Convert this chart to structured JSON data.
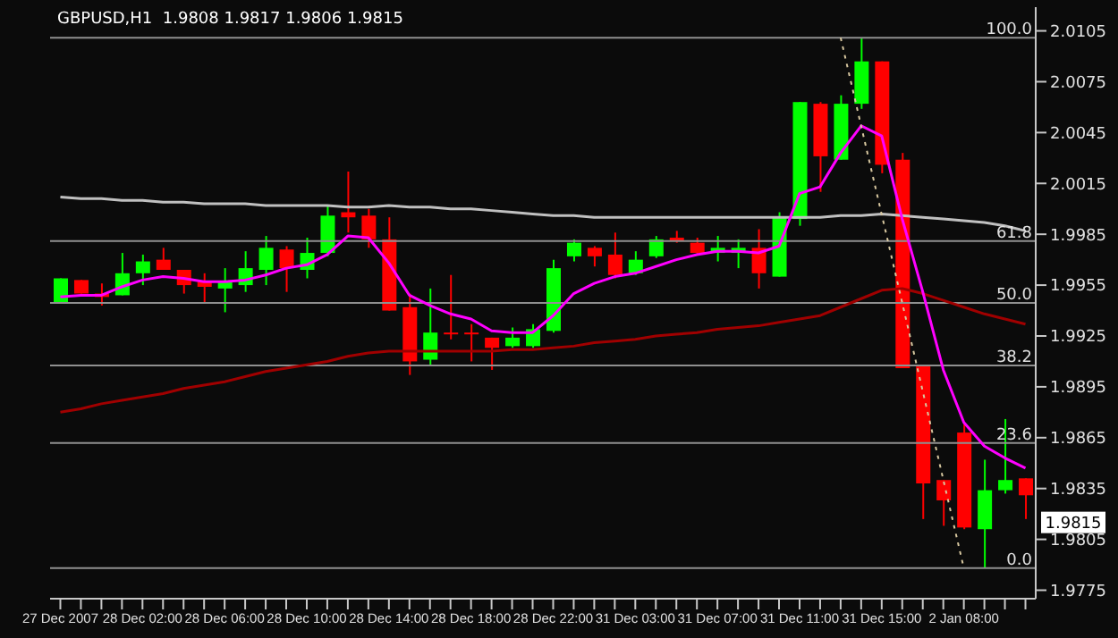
{
  "chart_data": {
    "type": "candlestick",
    "title": "GBPUSD,H1  1.9808 1.9817 1.9806 1.9815",
    "categories": [
      "27 Dec 2007",
      null,
      null,
      null,
      "28 Dec 02:00",
      null,
      null,
      null,
      "28 Dec 06:00",
      null,
      null,
      null,
      "28 Dec 10:00",
      null,
      null,
      null,
      "28 Dec 14:00",
      null,
      null,
      null,
      "28 Dec 18:00",
      null,
      null,
      null,
      "28 Dec 22:00",
      null,
      null,
      null,
      "31 Dec 03:00",
      null,
      null,
      null,
      "31 Dec 07:00",
      null,
      null,
      null,
      "31 Dec 11:00",
      null,
      null,
      null,
      "31 Dec 15:00",
      null,
      null,
      null,
      "2 Jan 08:00",
      null,
      null,
      null
    ],
    "ohlc": [
      [
        1.9944,
        1.9959,
        1.9944,
        1.9959
      ],
      [
        1.9958,
        1.9958,
        1.995,
        1.995
      ],
      [
        1.995,
        1.9956,
        1.9943,
        1.9948
      ],
      [
        1.9949,
        1.9974,
        1.9949,
        1.9962
      ],
      [
        1.9962,
        1.9973,
        1.9955,
        1.9969
      ],
      [
        1.997,
        1.9977,
        1.9964,
        1.9964
      ],
      [
        1.9964,
        1.9964,
        1.995,
        1.9955
      ],
      [
        1.9957,
        1.9962,
        1.9944,
        1.9954
      ],
      [
        1.9953,
        1.9965,
        1.9939,
        1.9957
      ],
      [
        1.9955,
        1.9975,
        1.9951,
        1.9965
      ],
      [
        1.9964,
        1.9984,
        1.9955,
        1.9977
      ],
      [
        1.9976,
        1.9978,
        1.9951,
        1.9965
      ],
      [
        1.9964,
        1.9983,
        1.9959,
        1.9974
      ],
      [
        1.9974,
        2.0002,
        1.9972,
        1.9996
      ],
      [
        1.9998,
        2.0022,
        1.9986,
        1.9995
      ],
      [
        1.9996,
        2.0,
        1.9977,
        1.9982
      ],
      [
        1.9982,
        1.9995,
        1.994,
        1.994
      ],
      [
        1.9942,
        1.995,
        1.9902,
        1.991
      ],
      [
        1.9911,
        1.9953,
        1.9908,
        1.9927
      ],
      [
        1.9927,
        1.9961,
        1.9923,
        1.9927
      ],
      [
        1.9927,
        1.9932,
        1.991,
        1.9927
      ],
      [
        1.9924,
        1.9924,
        1.9905,
        1.9918
      ],
      [
        1.9919,
        1.993,
        1.9918,
        1.9924
      ],
      [
        1.9919,
        1.9932,
        1.9918,
        1.9929
      ],
      [
        1.9928,
        1.997,
        1.9927,
        1.9965
      ],
      [
        1.9972,
        1.9982,
        1.9969,
        1.998
      ],
      [
        1.9977,
        1.9978,
        1.9966,
        1.9972
      ],
      [
        1.9973,
        1.9986,
        1.9959,
        1.9961
      ],
      [
        1.9962,
        1.9975,
        1.9961,
        1.997
      ],
      [
        1.9972,
        1.9984,
        1.9971,
        1.9982
      ],
      [
        1.9983,
        1.9987,
        1.998,
        1.9981
      ],
      [
        1.998,
        1.9983,
        1.9973,
        1.9974
      ],
      [
        1.9974,
        1.9984,
        1.9969,
        1.9977
      ],
      [
        1.9974,
        1.9982,
        1.9965,
        1.9977
      ],
      [
        1.9977,
        1.9988,
        1.9953,
        1.9962
      ],
      [
        1.996,
        1.9998,
        1.996,
        1.9995
      ],
      [
        1.9994,
        2.0063,
        1.999,
        2.0063
      ],
      [
        2.0062,
        2.0063,
        2.001,
        2.0031
      ],
      [
        2.0029,
        2.0067,
        2.0029,
        2.0062
      ],
      [
        2.0062,
        2.0101,
        2.0059,
        2.0087
      ],
      [
        2.0087,
        2.0087,
        2.0021,
        2.0026
      ],
      [
        2.0029,
        2.0033,
        1.9906,
        1.9906
      ],
      [
        1.9908,
        1.9908,
        1.9817,
        1.9838
      ],
      [
        1.984,
        1.984,
        1.9813,
        1.9828
      ],
      [
        1.9868,
        1.9873,
        1.9811,
        1.9812
      ],
      [
        1.9811,
        1.9852,
        1.9788,
        1.9834
      ],
      [
        1.9834,
        1.9876,
        1.9832,
        1.984
      ],
      [
        1.9841,
        1.9841,
        1.9817,
        1.9831
      ]
    ],
    "colors": [
      "#00ff00",
      "#ff0000",
      "#ff0000",
      "#00ff00",
      "#00ff00",
      "#ff0000",
      "#ff0000",
      "#ff0000",
      "#00ff00",
      "#00ff00",
      "#00ff00",
      "#ff0000",
      "#00ff00",
      "#00ff00",
      "#ff0000",
      "#ff0000",
      "#ff0000",
      "#ff0000",
      "#00ff00",
      "#ff0000",
      "#ff0000",
      "#ff0000",
      "#00ff00",
      "#00ff00",
      "#00ff00",
      "#00ff00",
      "#ff0000",
      "#ff0000",
      "#00ff00",
      "#00ff00",
      "#ff0000",
      "#ff0000",
      "#00ff00",
      "#00ff00",
      "#ff0000",
      "#00ff00",
      "#00ff00",
      "#ff0000",
      "#00ff00",
      "#00ff00",
      "#ff0000",
      "#ff0000",
      "#ff0000",
      "#ff0000",
      "#ff0000",
      "#00ff00",
      "#00ff00",
      "#ff0000"
    ],
    "series": [
      {
        "type": "line",
        "color": "#c0c0c0",
        "values": [
          2.0007,
          2.0006,
          2.0006,
          2.0005,
          2.0005,
          2.0004,
          2.0004,
          2.0003,
          2.0003,
          2.0003,
          2.0002,
          2.0002,
          2.0002,
          2.0002,
          2.0001,
          2.0001,
          2.0002,
          2.0001,
          2.0001,
          2.0,
          2.0,
          1.9999,
          1.9998,
          1.9997,
          1.9996,
          1.9996,
          1.9995,
          1.9995,
          1.9995,
          1.9995,
          1.9995,
          1.9995,
          1.9995,
          1.9995,
          1.9995,
          1.9995,
          1.9995,
          1.9995,
          1.9996,
          1.9996,
          1.9997,
          1.9996,
          1.9995,
          1.9994,
          1.9993,
          1.9992,
          1.999,
          1.9987
        ]
      },
      {
        "type": "line",
        "color": "#a00000",
        "values": [
          1.988,
          1.9882,
          1.9885,
          1.9887,
          1.9889,
          1.9891,
          1.9894,
          1.9896,
          1.9898,
          1.9901,
          1.9904,
          1.9906,
          1.9908,
          1.991,
          1.9913,
          1.9915,
          1.9916,
          1.9916,
          1.9916,
          1.9916,
          1.9916,
          1.9916,
          1.9917,
          1.9917,
          1.9918,
          1.9919,
          1.9921,
          1.9922,
          1.9923,
          1.9925,
          1.9926,
          1.9927,
          1.9929,
          1.993,
          1.9931,
          1.9933,
          1.9935,
          1.9937,
          1.9942,
          1.9947,
          1.9952,
          1.9953,
          1.995,
          1.9946,
          1.9942,
          1.9938,
          1.9935,
          1.9932
        ]
      },
      {
        "type": "line",
        "color": "#ff00ff",
        "values": [
          1.9948,
          1.9949,
          1.9949,
          1.9954,
          1.9958,
          1.996,
          1.9959,
          1.9957,
          1.9957,
          1.9958,
          1.9961,
          1.9965,
          1.9967,
          1.9973,
          1.9984,
          1.9983,
          1.9968,
          1.9949,
          1.9943,
          1.9938,
          1.9935,
          1.9928,
          1.9927,
          1.9927,
          1.9937,
          1.995,
          1.9956,
          1.996,
          1.9962,
          1.9966,
          1.997,
          1.9973,
          1.9975,
          1.9975,
          1.9974,
          1.9978,
          2.0009,
          2.0013,
          2.0033,
          2.0049,
          2.0043,
          1.9994,
          1.9951,
          1.9905,
          1.9874,
          1.986,
          1.9853,
          1.9847
        ]
      },
      {
        "type": "line",
        "color": "#d8c8a0",
        "line_style": "dotted",
        "values": [
          null,
          null,
          null,
          null,
          null,
          null,
          null,
          null,
          null,
          null,
          null,
          null,
          null,
          null,
          null,
          null,
          null,
          null,
          null,
          null,
          null,
          null,
          null,
          null,
          null,
          null,
          null,
          null,
          null,
          null,
          null,
          null,
          null,
          null,
          null,
          null,
          null,
          null,
          2.0101,
          null,
          null,
          null,
          null,
          null,
          1.9788,
          null,
          null,
          null
        ]
      }
    ],
    "ylim": [
      1.977,
      2.0119
    ],
    "yticks": [
      2.0105,
      2.0075,
      2.0045,
      2.0015,
      1.9985,
      1.9955,
      1.9925,
      1.9895,
      1.9865,
      1.9835,
      1.9805,
      1.9775
    ],
    "ref_lines": [
      {
        "axis": "y",
        "value": 2.0101,
        "color": "#909090"
      },
      {
        "axis": "y",
        "value": 1.9981,
        "color": "#909090"
      },
      {
        "axis": "y",
        "value": 1.99445,
        "color": "#909090"
      },
      {
        "axis": "y",
        "value": 1.99076,
        "color": "#909090"
      },
      {
        "axis": "y",
        "value": 1.98619,
        "color": "#909090"
      },
      {
        "axis": "y",
        "value": 1.9788,
        "color": "#909090"
      }
    ],
    "annotations": [
      {
        "text": "1.9815",
        "y": 1.9815
      },
      {
        "text": "100.0",
        "y": 2.0101
      },
      {
        "text": "61.8",
        "y": 1.9981
      },
      {
        "text": "50.0",
        "y": 1.99445
      },
      {
        "text": "38.2",
        "y": 1.99076
      },
      {
        "text": "23.6",
        "y": 1.98619
      },
      {
        "text": "0.0",
        "y": 1.9788
      }
    ]
  }
}
